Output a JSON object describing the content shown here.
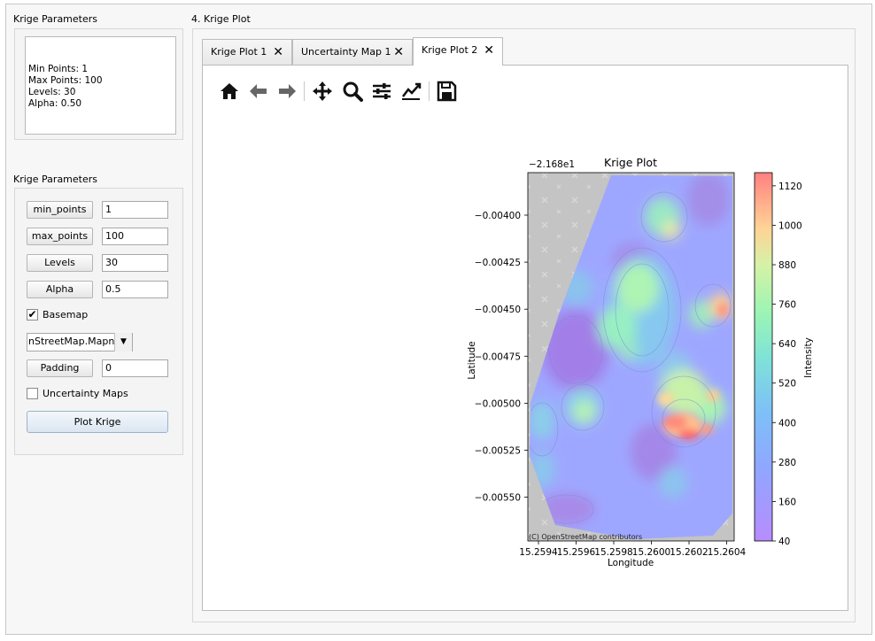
{
  "left_panel": {
    "summary_title": "Krige Parameters",
    "summary_lines": [
      "Min Points: 1",
      "Max Points: 100",
      "Levels: 30",
      "Alpha: 0.50"
    ],
    "params_title": "Krige Parameters",
    "min_points": {
      "label": "min_points",
      "value": "1"
    },
    "max_points": {
      "label": "max_points",
      "value": "100"
    },
    "levels": {
      "label": "Levels",
      "value": "30"
    },
    "alpha": {
      "label": "Alpha",
      "value": "0.5"
    },
    "basemap": {
      "label": "Basemap",
      "checked": true
    },
    "basemap_select": "nStreetMap.Mapnik",
    "padding": {
      "label": "Padding",
      "value": "0"
    },
    "uncertainty": {
      "label": "Uncertainty Maps",
      "checked": false
    },
    "plot_button": "Plot Krige"
  },
  "right_panel": {
    "title": "4. Krige Plot",
    "tabs": [
      {
        "label": "Krige Plot 1",
        "active": false
      },
      {
        "label": "Uncertainty Map 1",
        "active": false
      },
      {
        "label": "Krige Plot 2",
        "active": true
      }
    ],
    "toolbar": [
      "home-icon",
      "back-icon",
      "forward-icon",
      "pan-icon",
      "zoom-icon",
      "configure-subplots-icon",
      "edit-axis-icon",
      "save-icon"
    ]
  },
  "chart_data": {
    "type": "heatmap",
    "title": "Krige Plot",
    "xlabel": "Longitude",
    "ylabel": "Latitude",
    "y_offset_label": "−2.168e1",
    "x_ticks": [
      "15.2594",
      "15.2596",
      "15.2598",
      "15.2600",
      "15.2602",
      "15.2604"
    ],
    "y_ticks": [
      "−0.00400",
      "−0.00425",
      "−0.00450",
      "−0.00475",
      "−0.00500",
      "−0.00525",
      "−0.00550"
    ],
    "colorbar": {
      "label": "Intensity",
      "ticks": [
        "1120",
        "1000",
        "880",
        "760",
        "640",
        "520",
        "400",
        "280",
        "160",
        "40"
      ],
      "range": [
        40,
        1160
      ],
      "colormap": "rainbow (semi-transparent)"
    },
    "attribution": "(C) OpenStreetMap contributors",
    "basemap_color": "#c4c4c4",
    "hotspots": [
      {
        "lon": 15.26018,
        "lat": -0.0051,
        "intensity": 1150
      },
      {
        "lon": 15.26012,
        "lat": -0.00505,
        "intensity": 1000
      },
      {
        "lon": 15.26013,
        "lat": -0.00409,
        "intensity": 820
      },
      {
        "lon": 15.25985,
        "lat": -0.0045,
        "intensity": 500
      }
    ]
  }
}
